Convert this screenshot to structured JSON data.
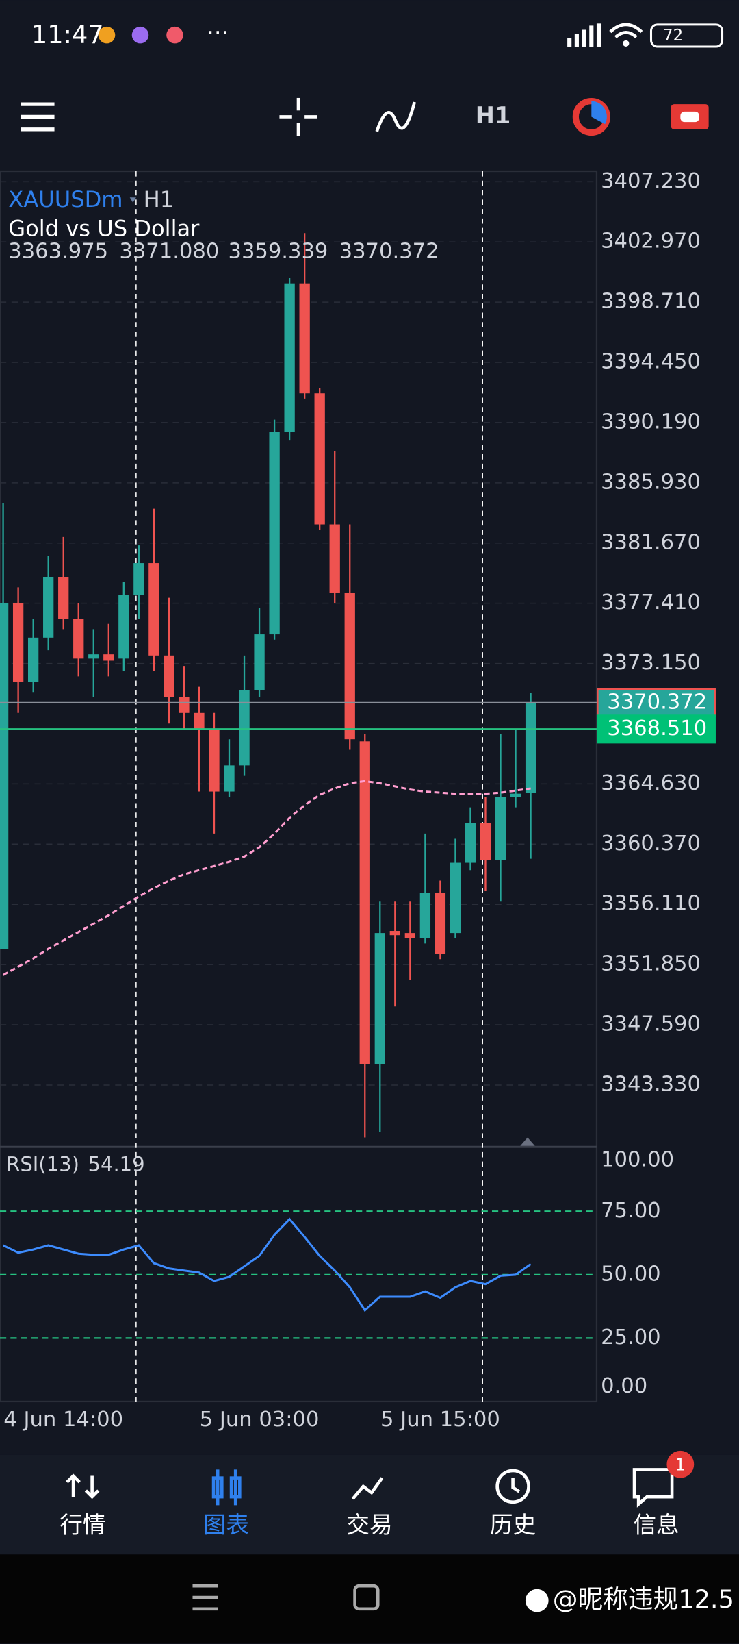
{
  "status_bar": {
    "time": "11:47",
    "battery": "72"
  },
  "toolbar": {
    "timeframe": "H1"
  },
  "chart_data": [
    {
      "type": "candlestick",
      "symbol": "XAUUSDm",
      "timeframe": "H1",
      "description": "Gold vs US Dollar",
      "ohlc_labels": [
        "3363.975",
        "3371.080",
        "3359.339",
        "3370.372"
      ],
      "categories": [
        null,
        null,
        null,
        null,
        "4 Jun 14:00",
        null,
        null,
        null,
        null,
        null,
        null,
        null,
        null,
        null,
        null,
        null,
        null,
        "5 Jun 03:00",
        null,
        null,
        null,
        null,
        null,
        null,
        null,
        null,
        null,
        null,
        null,
        "5 Jun 15:00",
        null,
        null,
        null,
        null,
        null,
        null
      ],
      "open": [
        3352.97,
        3377.43,
        3371.87,
        3374.98,
        3379.28,
        3376.32,
        3373.5,
        3373.8,
        3373.5,
        3378.02,
        3380.25,
        3373.72,
        3370.76,
        3369.65,
        3368.53,
        3364.09,
        3365.94,
        3371.28,
        3375.21,
        3389.51,
        3400.04,
        3392.26,
        3382.99,
        3378.17,
        3367.64,
        3344.81,
        3354.23,
        3354.08,
        3353.71,
        3356.9,
        3354.08,
        3359.05,
        3361.86,
        3359.27,
        3363.72,
        3363.975
      ],
      "high": [
        3384.47,
        3378.54,
        3376.32,
        3380.77,
        3382.1,
        3377.43,
        3375.58,
        3375.95,
        3378.91,
        3381.51,
        3384.1,
        3377.8,
        3372.98,
        3371.5,
        3369.65,
        3367.79,
        3373.72,
        3377.06,
        3390.4,
        3400.41,
        3403.6,
        3392.63,
        3388.18,
        3382.99,
        3368.16,
        3356.3,
        3356.3,
        3356.3,
        3361.12,
        3357.79,
        3360.75,
        3362.97,
        3363.72,
        3368.16,
        3368.53,
        3371.08
      ],
      "low": [
        3352.97,
        3369.65,
        3371.13,
        3374.09,
        3375.58,
        3372.24,
        3370.76,
        3372.24,
        3372.61,
        3376.32,
        3372.61,
        3368.9,
        3368.53,
        3364.09,
        3361.12,
        3363.72,
        3365.2,
        3370.76,
        3374.84,
        3388.92,
        3391.89,
        3382.62,
        3377.43,
        3367.05,
        3339.62,
        3339.99,
        3348.89,
        3350.74,
        3353.34,
        3352.23,
        3353.71,
        3358.53,
        3357.04,
        3356.3,
        3362.97,
        3359.339
      ],
      "close": [
        3377.43,
        3371.87,
        3374.98,
        3379.28,
        3376.32,
        3373.5,
        3373.8,
        3373.35,
        3378.02,
        3380.25,
        3373.72,
        3370.76,
        3369.65,
        3368.53,
        3364.09,
        3365.94,
        3371.28,
        3375.21,
        3389.51,
        3400.04,
        3392.26,
        3382.99,
        3378.17,
        3367.79,
        3344.81,
        3354.08,
        3353.93,
        3353.71,
        3356.9,
        3352.6,
        3359.05,
        3361.86,
        3359.27,
        3363.72,
        3363.94,
        3370.372
      ],
      "up_color": "#26a69a",
      "down_color": "#ef5350",
      "ma_values": [
        3351.11,
        3351.7,
        3352.29,
        3352.97,
        3353.56,
        3354.15,
        3354.74,
        3355.34,
        3356.0,
        3356.67,
        3357.26,
        3357.78,
        3358.23,
        3358.53,
        3358.82,
        3359.12,
        3359.49,
        3360.15,
        3361.12,
        3362.23,
        3363.12,
        3363.86,
        3364.31,
        3364.68,
        3364.83,
        3364.68,
        3364.46,
        3364.23,
        3364.09,
        3364.01,
        3363.94,
        3363.94,
        3363.94,
        3364.01,
        3364.16,
        3364.31
      ],
      "ma_color": "#ff9ecf",
      "bid": {
        "value": 3370.372,
        "label": "3370.372"
      },
      "ask": {
        "value": 3368.51,
        "label": "3368.510"
      },
      "ylim": [
        3339.03,
        3407.97
      ],
      "yticks": [
        {
          "value": 3407.23,
          "label": "3407.230"
        },
        {
          "value": 3402.97,
          "label": "3402.970"
        },
        {
          "value": 3398.71,
          "label": "3398.710"
        },
        {
          "value": 3394.45,
          "label": "3394.450"
        },
        {
          "value": 3390.19,
          "label": "3390.190"
        },
        {
          "value": 3385.93,
          "label": "3385.930"
        },
        {
          "value": 3381.67,
          "label": "3381.670"
        },
        {
          "value": 3377.41,
          "label": "3377.410"
        },
        {
          "value": 3373.15,
          "label": "3373.150"
        },
        {
          "value": 3364.63,
          "label": "3364.630"
        },
        {
          "value": 3360.37,
          "label": "3360.370"
        },
        {
          "value": 3356.11,
          "label": "3356.110"
        },
        {
          "value": 3351.85,
          "label": "3351.850"
        },
        {
          "value": 3347.59,
          "label": "3347.590"
        },
        {
          "value": 3343.33,
          "label": "3343.330"
        }
      ],
      "grid": true
    },
    {
      "type": "line",
      "name": "RSI(13)",
      "color": "#3d8bfd",
      "values": [
        61.57,
        58.68,
        59.92,
        61.57,
        59.92,
        58.26,
        57.85,
        57.85,
        59.92,
        61.57,
        54.55,
        52.48,
        51.65,
        50.83,
        47.52,
        49.17,
        53.31,
        57.44,
        65.7,
        71.9,
        64.88,
        57.44,
        51.65,
        45.04,
        35.95,
        41.32,
        41.32,
        41.32,
        43.39,
        40.91,
        45.04,
        47.52,
        46.28,
        49.59,
        50.0,
        54.19
      ],
      "ylim": [
        0,
        100
      ],
      "yticks": [
        {
          "value": 100,
          "label": "100.00"
        },
        {
          "value": 75,
          "label": "75.00"
        },
        {
          "value": 50,
          "label": "50.00"
        },
        {
          "value": 25,
          "label": "25.00"
        },
        {
          "value": 0,
          "label": "0.00"
        }
      ],
      "level_color": "#26c281"
    }
  ],
  "nav": {
    "items": [
      "行情",
      "图表",
      "交易",
      "历史",
      "信息"
    ],
    "badge": "1"
  },
  "watermark": "@昵称违规12.5"
}
